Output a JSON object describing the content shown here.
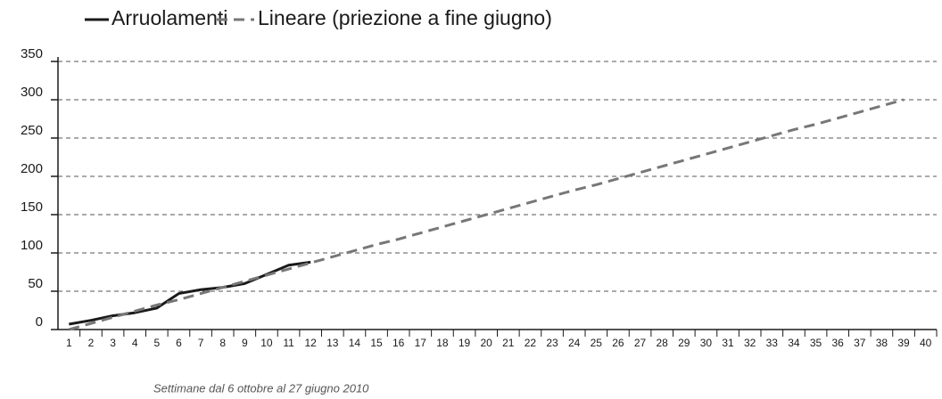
{
  "chart_data": {
    "type": "line",
    "x_label": "Settimane dal 6 ottobre al 27 giugno 2010",
    "categories": [
      "1",
      "2",
      "3",
      "4",
      "5",
      "6",
      "7",
      "8",
      "9",
      "10",
      "11",
      "12",
      "13",
      "14",
      "15",
      "16",
      "17",
      "18",
      "19",
      "20",
      "21",
      "22",
      "23",
      "24",
      "25",
      "26",
      "27",
      "28",
      "29",
      "30",
      "31",
      "32",
      "33",
      "34",
      "35",
      "36",
      "37",
      "38",
      "39",
      "40"
    ],
    "series": [
      {
        "name": "Arruolamenti",
        "color": "#1a1a1a",
        "dashed": false,
        "values": [
          7,
          12,
          18,
          22,
          28,
          47,
          52,
          55,
          60,
          72,
          84,
          88,
          null,
          null,
          null,
          null,
          null,
          null,
          null,
          null,
          null,
          null,
          null,
          null,
          null,
          null,
          null,
          null,
          null,
          null,
          null,
          null,
          null,
          null,
          null,
          null,
          null,
          null,
          null,
          null
        ]
      },
      {
        "name": "Lineare (priezione a fine giugno)",
        "color": "#777777",
        "dashed": true,
        "values": [
          0,
          8,
          16,
          24,
          32,
          39,
          47,
          55,
          63,
          71,
          79,
          87,
          95,
          103,
          111,
          118,
          126,
          134,
          142,
          150,
          158,
          166,
          174,
          182,
          189,
          197,
          205,
          213,
          221,
          229,
          237,
          245,
          253,
          261,
          268,
          276,
          284,
          292,
          300,
          null
        ]
      }
    ],
    "ylim": [
      0,
      350
    ],
    "yticks": [
      0,
      50,
      100,
      150,
      200,
      250,
      300,
      350
    ],
    "grid": true
  }
}
